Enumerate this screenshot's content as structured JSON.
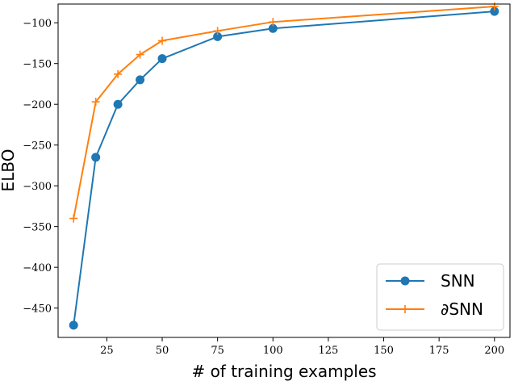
{
  "chart_data": {
    "type": "line",
    "xlabel": "# of training examples",
    "ylabel": "ELBO",
    "xlim": [
      3,
      207
    ],
    "ylim": [
      -486,
      -77
    ],
    "x_ticks": [
      25,
      50,
      75,
      100,
      125,
      150,
      175,
      200
    ],
    "x_tick_labels": [
      "25",
      "50",
      "75",
      "100",
      "125",
      "150",
      "175",
      "200"
    ],
    "y_ticks": [
      -450,
      -400,
      -350,
      -300,
      -250,
      -200,
      -150,
      -100
    ],
    "y_tick_labels": [
      "−450",
      "−400",
      "−350",
      "−300",
      "−250",
      "−200",
      "−150",
      "−100"
    ],
    "grid": false,
    "legend_position": "lower-right",
    "series": [
      {
        "name": "SNN",
        "color": "#1f77b4",
        "marker": "circle",
        "x": [
          10,
          20,
          30,
          40,
          50,
          75,
          100,
          200
        ],
        "y": [
          -471,
          -265,
          -200,
          -170,
          -144,
          -117,
          -107,
          -86
        ]
      },
      {
        "name": "∂SNN",
        "color": "#ff7f0e",
        "marker": "plus",
        "x": [
          10,
          20,
          30,
          40,
          50,
          75,
          100,
          200
        ],
        "y": [
          -340,
          -197,
          -163,
          -139,
          -122,
          -110,
          -99,
          -80
        ]
      }
    ]
  }
}
